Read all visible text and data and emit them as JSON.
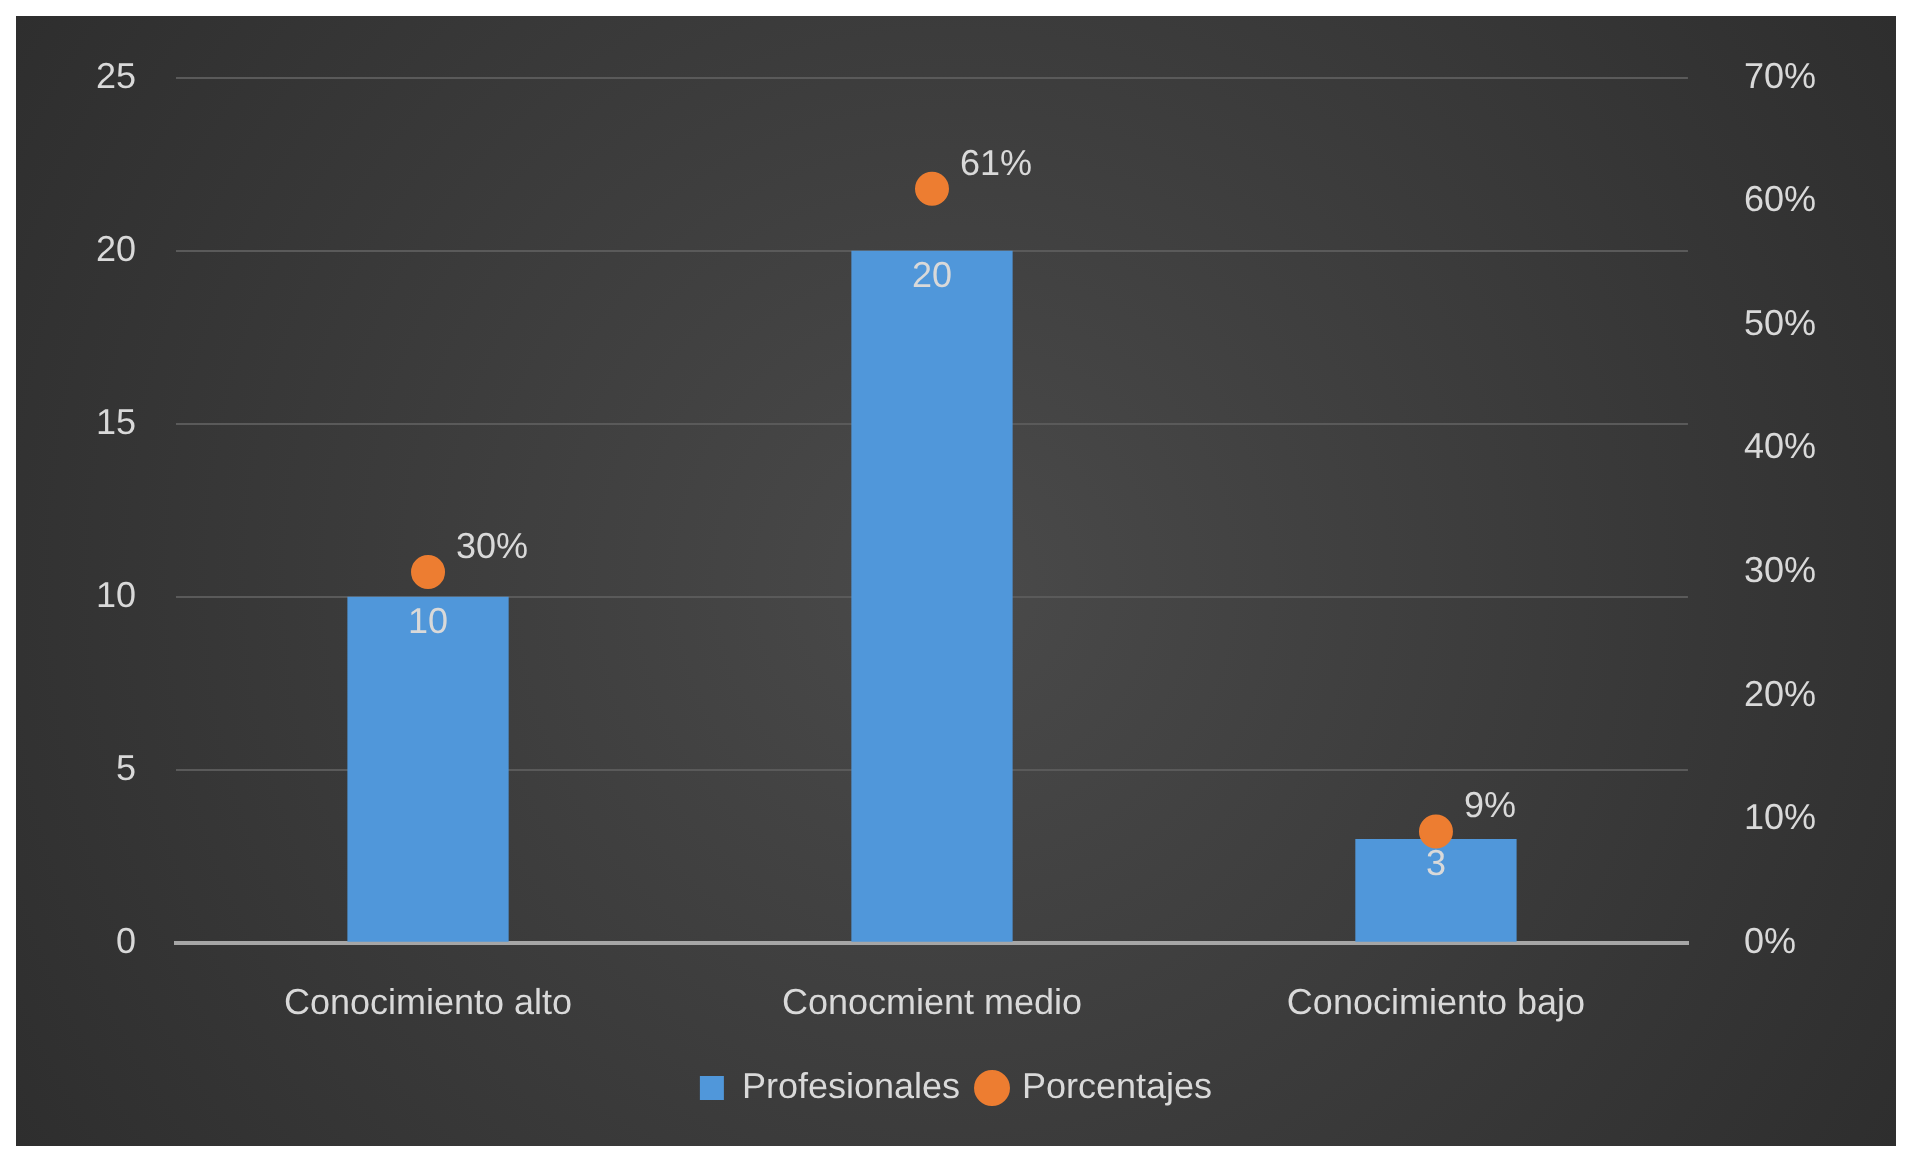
{
  "chart_data": {
    "type": "bar",
    "categories": [
      "Conocimiento alto",
      "Conocmient medio",
      "Conocimiento bajo"
    ],
    "series": [
      {
        "name": "Profesionales",
        "color": "#5097da",
        "values": [
          10,
          20,
          3
        ],
        "value_labels": [
          "10",
          "20",
          "3"
        ]
      },
      {
        "name": "Porcentajes",
        "type": "scatter",
        "axis": "y2",
        "color": "#ed7d31",
        "marker": "circle",
        "x": [
          "Conocimiento alto",
          "Conocmient medio",
          "Conocimiento bajo"
        ],
        "values": [
          30,
          61,
          9
        ],
        "value_labels": [
          "30%",
          "61%",
          "9%"
        ]
      }
    ],
    "ylim": [
      0,
      25
    ],
    "yticks": [
      0,
      5,
      10,
      15,
      20,
      25
    ],
    "y2lim": [
      0,
      70
    ],
    "y2ticks": [
      {
        "value": 0,
        "label": "0%"
      },
      {
        "value": 10,
        "label": "10%"
      },
      {
        "value": 20,
        "label": "20%"
      },
      {
        "value": 30,
        "label": "30%"
      },
      {
        "value": 40,
        "label": "40%"
      },
      {
        "value": 50,
        "label": "50%"
      },
      {
        "value": 60,
        "label": "60%"
      },
      {
        "value": 70,
        "label": "70%"
      }
    ],
    "grid": "y",
    "legend": "bottom"
  }
}
